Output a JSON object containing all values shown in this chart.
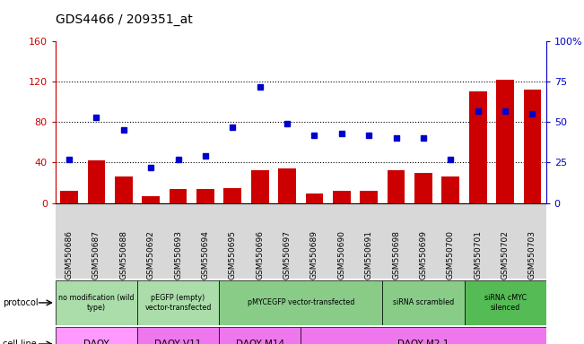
{
  "title": "GDS4466 / 209351_at",
  "samples": [
    "GSM550686",
    "GSM550687",
    "GSM550688",
    "GSM550692",
    "GSM550693",
    "GSM550694",
    "GSM550695",
    "GSM550696",
    "GSM550697",
    "GSM550689",
    "GSM550690",
    "GSM550691",
    "GSM550698",
    "GSM550699",
    "GSM550700",
    "GSM550701",
    "GSM550702",
    "GSM550703"
  ],
  "counts": [
    12,
    42,
    26,
    7,
    14,
    14,
    15,
    32,
    34,
    9,
    12,
    12,
    32,
    30,
    26,
    110,
    122,
    112
  ],
  "percentiles": [
    27,
    53,
    45,
    22,
    27,
    29,
    47,
    72,
    49,
    42,
    43,
    42,
    40,
    40,
    27,
    57,
    57,
    55
  ],
  "ylim_left": [
    0,
    160
  ],
  "ylim_right": [
    0,
    100
  ],
  "yticks_left": [
    0,
    40,
    80,
    120,
    160
  ],
  "yticks_right": [
    0,
    25,
    50,
    75,
    100
  ],
  "bar_color": "#cc0000",
  "dot_color": "#0000cc",
  "background_color": "#ffffff",
  "left_axis_color": "#cc0000",
  "right_axis_color": "#0000cc",
  "tick_area_bg": "#d8d8d8",
  "protocol_groups": [
    {
      "label": "no modification (wild\ntype)",
      "start": 0,
      "end": 3,
      "color": "#aaddaa"
    },
    {
      "label": "pEGFP (empty)\nvector-transfected",
      "start": 3,
      "end": 6,
      "color": "#aaddaa"
    },
    {
      "label": "pMYCEGFP vector-transfected",
      "start": 6,
      "end": 12,
      "color": "#88cc88"
    },
    {
      "label": "siRNA scrambled",
      "start": 12,
      "end": 15,
      "color": "#88cc88"
    },
    {
      "label": "siRNA cMYC\nsilenced",
      "start": 15,
      "end": 18,
      "color": "#55bb55"
    }
  ],
  "cell_line_groups": [
    {
      "label": "DAOY",
      "start": 0,
      "end": 3,
      "color": "#ff99ff"
    },
    {
      "label": "DAOY V11",
      "start": 3,
      "end": 6,
      "color": "#ee77ee"
    },
    {
      "label": "DAOY M14",
      "start": 6,
      "end": 9,
      "color": "#ee77ee"
    },
    {
      "label": "DAOY M2.1",
      "start": 9,
      "end": 18,
      "color": "#ee77ee"
    }
  ]
}
